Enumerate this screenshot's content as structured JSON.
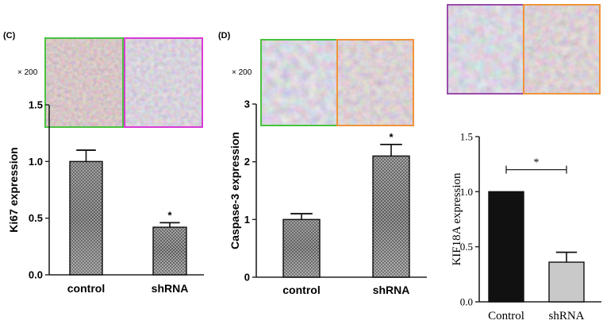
{
  "colors": {
    "tile_green": "#49c23f",
    "tile_magenta": "#d93ad6",
    "tile_orange": "#f0943a",
    "tile_purple": "#9a4ca8",
    "bar_dark": "#111111",
    "bar_light": "#c9c9c9",
    "bar_pattern": "#7a7a7a"
  },
  "panels": {
    "c": {
      "label": "(C)",
      "magnification": "× 200"
    },
    "d": {
      "label": "(D)",
      "magnification": "× 200"
    }
  },
  "chart_data": [
    {
      "id": "C",
      "type": "bar",
      "categories": [
        "control",
        "shRNA"
      ],
      "values": [
        1.0,
        0.42
      ],
      "errors": [
        0.1,
        0.04
      ],
      "significance": [
        "",
        "*"
      ],
      "ylabel": "Ki67 expression",
      "ylim": [
        0,
        1.5
      ],
      "yticks": [
        "0.0",
        "0.5",
        "1.0",
        "1.5"
      ]
    },
    {
      "id": "D",
      "type": "bar",
      "categories": [
        "control",
        "shRNA"
      ],
      "values": [
        1.0,
        2.1
      ],
      "errors": [
        0.1,
        0.2
      ],
      "significance": [
        "",
        "*"
      ],
      "ylabel": "Caspase-3 expression",
      "ylim": [
        0,
        3
      ],
      "yticks": [
        "0",
        "1",
        "2",
        "3"
      ]
    },
    {
      "id": "KIF18A",
      "type": "bar",
      "categories": [
        "Control",
        "shRNA"
      ],
      "values": [
        1.0,
        0.36
      ],
      "errors": [
        0,
        0.09
      ],
      "significance_bracket": "*",
      "ylabel": "KIF18A expression",
      "ylim": [
        0,
        1.5
      ],
      "yticks": [
        "0.0",
        "0.5",
        "1.0",
        "1.5"
      ]
    }
  ]
}
